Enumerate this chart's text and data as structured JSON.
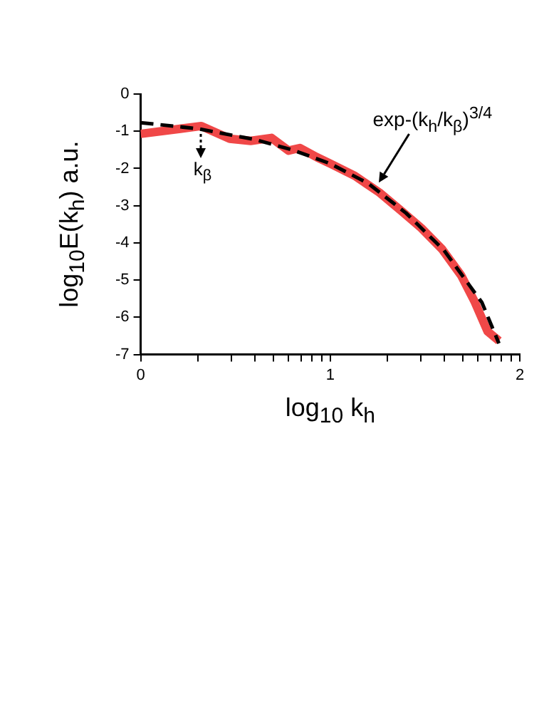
{
  "chart_data": {
    "type": "line",
    "xlabel": "log$_{10}$ k$_{h}$",
    "ylabel": "log$_{10}$E(k$_{h}$)   a.u.",
    "xlim": [
      0,
      2
    ],
    "ylim": [
      -7,
      0
    ],
    "xticks": [
      0,
      {
        "value": 0.301,
        "label": null
      },
      {
        "value": 0.477,
        "label": null
      },
      {
        "value": 0.602,
        "label": null
      },
      {
        "value": 0.699,
        "label": null
      },
      {
        "value": 0.778,
        "label": null
      },
      {
        "value": 0.845,
        "label": null
      },
      {
        "value": 0.903,
        "label": null
      },
      {
        "value": 0.954,
        "label": null
      },
      1,
      {
        "value": 1.301,
        "label": null
      },
      {
        "value": 1.477,
        "label": null
      },
      {
        "value": 1.602,
        "label": null
      },
      {
        "value": 1.699,
        "label": null
      },
      {
        "value": 1.778,
        "label": null
      },
      {
        "value": 1.845,
        "label": null
      },
      {
        "value": 1.903,
        "label": null
      },
      {
        "value": 1.954,
        "label": null
      },
      2
    ],
    "yticks": [
      -7,
      -6,
      -5,
      -4,
      -3,
      -2,
      -1,
      0
    ],
    "grid": false,
    "legend": false,
    "marker": "none",
    "series": [
      {
        "color": "#f04848",
        "line_style": "solid",
        "x": [
          0,
          0.32,
          0.47,
          0.58,
          0.69,
          0.78,
          0.84,
          0.93,
          1.0,
          1.13,
          1.26,
          1.38,
          1.48,
          1.59,
          1.69,
          1.76,
          1.83,
          1.89
        ],
        "values": [
          -1.07,
          -0.86,
          -1.2,
          -1.26,
          -1.18,
          -1.52,
          -1.45,
          -1.7,
          -1.87,
          -2.2,
          -2.65,
          -3.16,
          -3.6,
          -4.17,
          -4.87,
          -5.56,
          -6.38,
          -6.63
        ]
      },
      {
        "color": "#000000",
        "line_style": "dashed",
        "x": [
          0,
          0.3,
          0.6,
          0.8,
          1.0,
          1.2,
          1.4,
          1.6,
          1.8,
          1.89
        ],
        "values": [
          -0.77,
          -0.93,
          -1.22,
          -1.5,
          -1.87,
          -2.4,
          -3.2,
          -4.2,
          -5.6,
          -6.7
        ]
      }
    ],
    "annotations": [
      {
        "text": "k$_{β}$",
        "x": 0.32,
        "y": -0.95
      },
      "exp-(k$_{h}$/k$_{β}$)$^{3/4}$"
    ]
  }
}
